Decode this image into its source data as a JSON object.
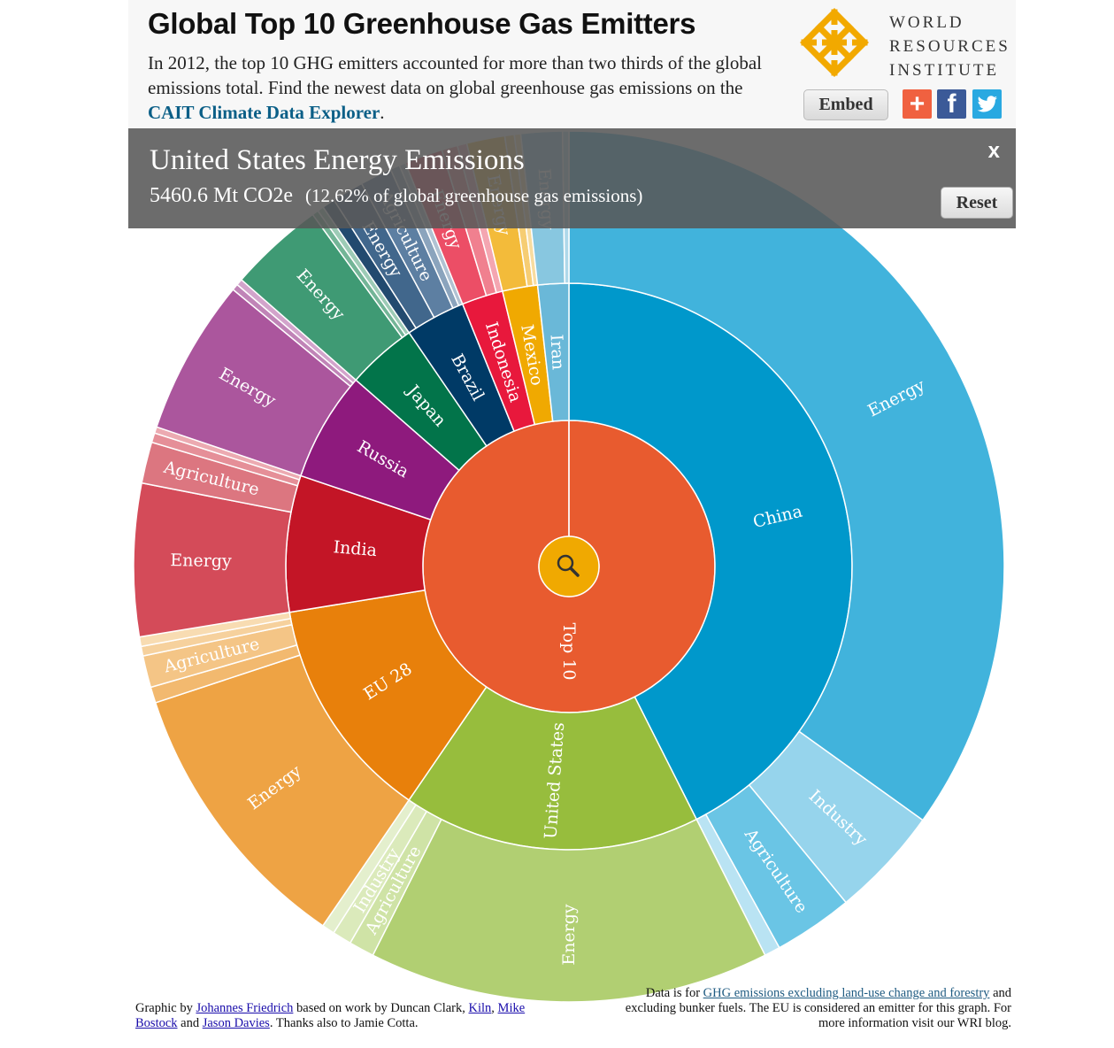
{
  "header": {
    "title": "Global Top 10 Greenhouse Gas Emitters",
    "subtitle_text": "In 2012, the top 10 GHG emitters accounted for more than two thirds of the global emissions total. Find the newest data on global greenhouse gas emissions on the ",
    "subtitle_link": "CAIT Climate Data Explorer",
    "subtitle_end": ".",
    "logo_lines": [
      "WORLD",
      "RESOURCES",
      "INSTITUTE"
    ],
    "embed_label": "Embed",
    "share_icons": [
      "plus-share-icon",
      "facebook-icon",
      "twitter-icon"
    ]
  },
  "overlay": {
    "title": "United States Energy Emissions",
    "value": "5460.6 Mt CO2e",
    "share": "(12.62% of global greenhouse gas emissions)",
    "close_label": "x",
    "reset_label": "Reset"
  },
  "chart_data": {
    "type": "sunburst",
    "center_icon": "magnifier-icon",
    "root": "Top 10",
    "countries": [
      {
        "name": "China",
        "color": "#0098cb",
        "sectors": [
          {
            "name": "Energy",
            "value": 29.6,
            "color": "#41b3dc",
            "label": "Energy"
          },
          {
            "name": "Industry",
            "value": 3.5,
            "color": "#96d4ec",
            "label": "Industry"
          },
          {
            "name": "Agriculture",
            "value": 2.5,
            "color": "#6ac5e5",
            "label": "Agriculture"
          },
          {
            "name": "Other",
            "value": 0.5,
            "color": "#b9e3f3",
            "label": ""
          }
        ]
      },
      {
        "name": "United States",
        "color": "#97bd3d",
        "sectors": [
          {
            "name": "Energy",
            "value": 12.62,
            "color": "#b1cf72",
            "label": "Energy"
          },
          {
            "name": "Agriculture",
            "value": 0.8,
            "color": "#cfe3a6",
            "label": "Agriculture"
          },
          {
            "name": "Industry",
            "value": 0.6,
            "color": "#dbeabb",
            "label": "Industry"
          },
          {
            "name": "Other",
            "value": 0.4,
            "color": "#e4efcd",
            "label": ""
          }
        ]
      },
      {
        "name": "EU 28",
        "color": "#e8800b",
        "sectors": [
          {
            "name": "Energy",
            "value": 8.8,
            "color": "#eea344",
            "label": "Energy"
          },
          {
            "name": "Other",
            "value": 0.5,
            "color": "#f2b96f",
            "label": ""
          },
          {
            "name": "Agriculture",
            "value": 1.0,
            "color": "#f4c586",
            "label": "Agriculture"
          },
          {
            "name": "Other",
            "value": 0.3,
            "color": "#f6d19d",
            "label": ""
          },
          {
            "name": "Other",
            "value": 0.3,
            "color": "#f8dcb2",
            "label": ""
          }
        ]
      },
      {
        "name": "India",
        "color": "#c31526",
        "sectors": [
          {
            "name": "Energy",
            "value": 4.8,
            "color": "#d44b59",
            "label": "Energy"
          },
          {
            "name": "Agriculture",
            "value": 1.3,
            "color": "#dc7680",
            "label": "Agriculture"
          },
          {
            "name": "Other",
            "value": 0.3,
            "color": "#e58f98",
            "label": ""
          },
          {
            "name": "Other",
            "value": 0.2,
            "color": "#ecaab1",
            "label": ""
          }
        ]
      },
      {
        "name": "Russia",
        "color": "#8e1a7d",
        "sectors": [
          {
            "name": "Energy",
            "value": 4.9,
            "color": "#ab569d",
            "label": "Energy"
          },
          {
            "name": "Other",
            "value": 0.2,
            "color": "#c084b7",
            "label": ""
          },
          {
            "name": "Other",
            "value": 0.2,
            "color": "#d2a4cb",
            "label": ""
          }
        ]
      },
      {
        "name": "Japan",
        "color": "#02744a",
        "sectors": [
          {
            "name": "Energy",
            "value": 3.0,
            "color": "#3f9a74",
            "label": "Energy"
          },
          {
            "name": "Other",
            "value": 0.2,
            "color": "#73b597",
            "label": ""
          },
          {
            "name": "Other",
            "value": 0.2,
            "color": "#9dcbb6",
            "label": ""
          }
        ]
      },
      {
        "name": "Brazil",
        "color": "#003a66",
        "sectors": [
          {
            "name": "Other",
            "value": 0.4,
            "color": "#224a6f",
            "label": ""
          },
          {
            "name": "Energy",
            "value": 1.0,
            "color": "#41678c",
            "label": "Energy"
          },
          {
            "name": "Agriculture",
            "value": 1.0,
            "color": "#5d7fa2",
            "label": "Agriculture"
          },
          {
            "name": "Other",
            "value": 0.3,
            "color": "#8ba4bd",
            "label": ""
          },
          {
            "name": "Other",
            "value": 0.2,
            "color": "#b0c2d3",
            "label": ""
          }
        ]
      },
      {
        "name": "Indonesia",
        "color": "#e8183c",
        "sectors": [
          {
            "name": "Energy",
            "value": 1.2,
            "color": "#ec4e66",
            "label": "Energy"
          },
          {
            "name": "Other",
            "value": 0.5,
            "color": "#f0808f",
            "label": ""
          },
          {
            "name": "Other",
            "value": 0.3,
            "color": "#f4a6b1",
            "label": ""
          }
        ]
      },
      {
        "name": "Mexico",
        "color": "#f0a901",
        "sectors": [
          {
            "name": "Energy",
            "value": 1.2,
            "color": "#f3bb3a",
            "label": "Energy"
          },
          {
            "name": "Other",
            "value": 0.3,
            "color": "#f6cd73",
            "label": ""
          },
          {
            "name": "Other",
            "value": 0.2,
            "color": "#f8dc9f",
            "label": ""
          }
        ]
      },
      {
        "name": "Iran",
        "color": "#6ab8d8",
        "sectors": [
          {
            "name": "Energy",
            "value": 1.3,
            "color": "#88c7e0",
            "label": "Energy"
          },
          {
            "name": "Other",
            "value": 0.2,
            "color": "#aed8ea",
            "label": ""
          }
        ]
      }
    ]
  },
  "footer": {
    "credits_prefix": "Graphic by ",
    "credits_author": "Johannes Friedrich",
    "credits_mid": " based on work by Duncan Clark, ",
    "credits_kiln": "Kiln",
    "credits_comma": ", ",
    "credits_bostock": "Mike Bostock",
    "credits_and": " and ",
    "credits_davies": "Jason Davies",
    "credits_end": ". Thanks also to Jamie Cotta.",
    "data_prefix": "Data is for ",
    "data_link": "GHG emissions excluding land-use change and forestry",
    "data_rest": " and excluding bunker fuels. The EU is considered an emitter for this graph. For more information visit our WRI blog."
  }
}
